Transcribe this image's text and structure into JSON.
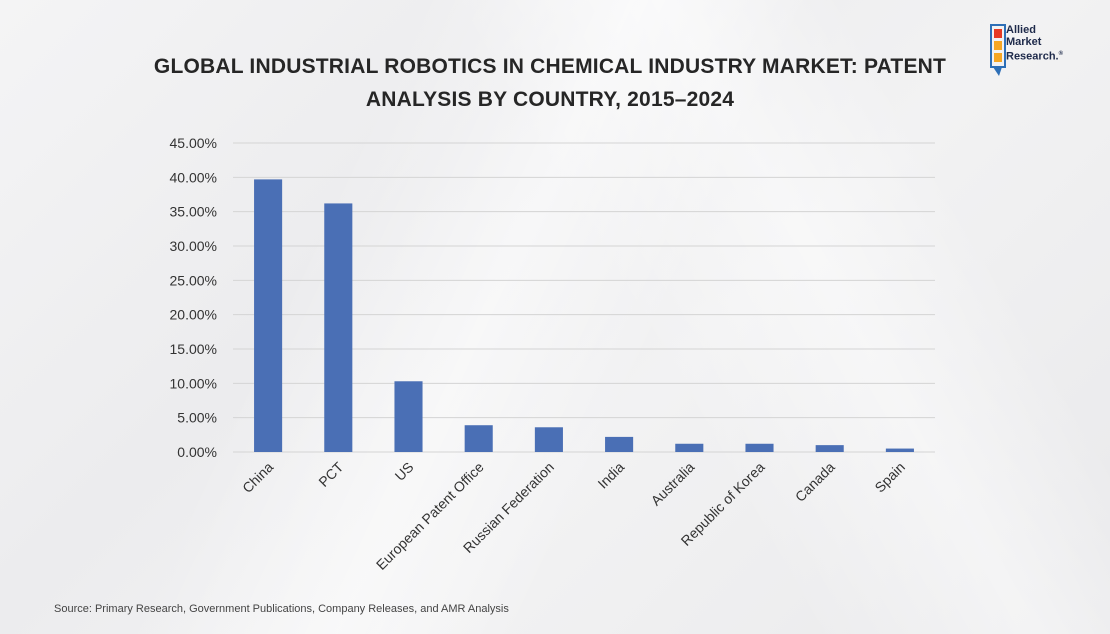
{
  "header": {
    "title_line1": "GLOBAL INDUSTRIAL ROBOTICS IN CHEMICAL INDUSTRY MARKET: PATENT",
    "title_line2": "ANALYSIS BY COUNTRY, 2015–2024"
  },
  "logo": {
    "line1": "Allied",
    "line2": "Market",
    "line3": "Research.",
    "reg": "®",
    "colors": [
      "#e63a24",
      "#f5a623",
      "#2d6fb7",
      "#1e2a4a"
    ]
  },
  "footer": {
    "source": "Source: Primary Research, Government Publications, Company Releases, and AMR Analysis"
  },
  "chart_data": {
    "type": "bar",
    "title": "GLOBAL INDUSTRIAL ROBOTICS IN CHEMICAL INDUSTRY MARKET: PATENT ANALYSIS BY COUNTRY, 2015–2024",
    "categories": [
      "China",
      "PCT",
      "US",
      "European Patent Office",
      "Russian Federation",
      "India",
      "Australia",
      "Republic of Korea",
      "Canada",
      "Spain"
    ],
    "values": [
      39.7,
      36.2,
      10.3,
      3.9,
      3.6,
      2.2,
      1.2,
      1.2,
      1.0,
      0.5
    ],
    "unit": "%",
    "ylim": [
      0,
      45
    ],
    "yticks": [
      "0.00%",
      "5.00%",
      "10.00%",
      "15.00%",
      "20.00%",
      "25.00%",
      "30.00%",
      "35.00%",
      "40.00%",
      "45.00%"
    ],
    "ytick_values": [
      0,
      5,
      10,
      15,
      20,
      25,
      30,
      35,
      40,
      45
    ],
    "xlabel": "",
    "ylabel": "",
    "grid": true,
    "bar_color": "#4a6fb5",
    "grid_color": "#d4d4d4"
  }
}
